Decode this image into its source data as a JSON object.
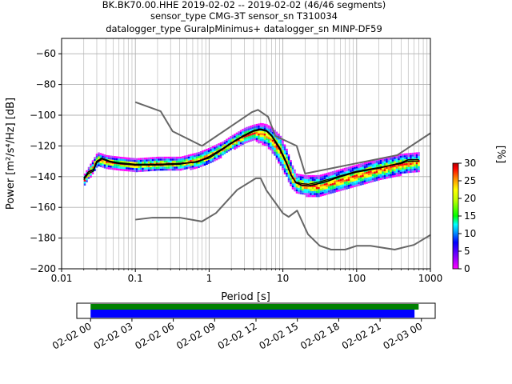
{
  "chart_data": {
    "type": "heatmap",
    "title_lines": [
      "BK.BK70.00.HHE   2019-02-02 -- 2019-02-02  (46/46 segments)",
      "sensor_type CMG-3T sensor_sn T310034",
      "datalogger_type GuralpMinimus+ datalogger_sn MINP-DF59"
    ],
    "xlabel": "Period [s]",
    "ylabel": "Power [m²/s⁴/Hz] [dB]",
    "xscale": "log",
    "xlim": [
      0.01,
      1000
    ],
    "ylim": [
      -200,
      -50
    ],
    "xticks": [
      {
        "value": 0.01,
        "label": "0.01"
      },
      {
        "value": 0.1,
        "label": "0.1"
      },
      {
        "value": 1,
        "label": "1"
      },
      {
        "value": 10,
        "label": "10"
      },
      {
        "value": 100,
        "label": "100"
      },
      {
        "value": 1000,
        "label": "1000"
      }
    ],
    "yticks": [
      {
        "value": -60,
        "label": "−60"
      },
      {
        "value": -80,
        "label": "−80"
      },
      {
        "value": -100,
        "label": "−100"
      },
      {
        "value": -120,
        "label": "−120"
      },
      {
        "value": -140,
        "label": "−140"
      },
      {
        "value": -160,
        "label": "−160"
      },
      {
        "value": -180,
        "label": "−180"
      },
      {
        "value": -200,
        "label": "−200"
      }
    ],
    "grid": true,
    "colorbar": {
      "label": "[%]",
      "range": [
        0,
        30
      ],
      "ticks": [
        "0",
        "5",
        "10",
        "15",
        "20",
        "25",
        "30"
      ]
    },
    "new_high_noise_model": [
      [
        0.1,
        -91.5
      ],
      [
        0.22,
        -97.4
      ],
      [
        0.32,
        -110.5
      ],
      [
        0.8,
        -120
      ],
      [
        3.8,
        -98
      ],
      [
        4.6,
        -96.5
      ],
      [
        6.3,
        -101
      ],
      [
        7.9,
        -113.5
      ],
      [
        15.4,
        -120
      ],
      [
        20,
        -138
      ],
      [
        354.8,
        -126
      ],
      [
        10000,
        -80
      ]
    ],
    "new_low_noise_model": [
      [
        0.1,
        -168
      ],
      [
        0.17,
        -166.7
      ],
      [
        0.4,
        -166.7
      ],
      [
        0.8,
        -169.2
      ],
      [
        1.24,
        -163.7
      ],
      [
        2.4,
        -148.6
      ],
      [
        4.3,
        -141.1
      ],
      [
        5,
        -141.1
      ],
      [
        6,
        -149
      ],
      [
        10,
        -163.8
      ],
      [
        12,
        -166.2
      ],
      [
        15.6,
        -162.1
      ],
      [
        21.9,
        -177.5
      ],
      [
        31.6,
        -185
      ],
      [
        45,
        -187.5
      ],
      [
        70,
        -187.5
      ],
      [
        101,
        -185
      ],
      [
        154,
        -185
      ],
      [
        328,
        -187.5
      ],
      [
        600,
        -184.4
      ],
      [
        1000,
        -178
      ]
    ],
    "mode_line": [
      [
        0.02,
        -141
      ],
      [
        0.023,
        -137
      ],
      [
        0.027,
        -135.5
      ],
      [
        0.03,
        -130
      ],
      [
        0.035,
        -128
      ],
      [
        0.045,
        -130
      ],
      [
        0.06,
        -131
      ],
      [
        0.1,
        -132
      ],
      [
        0.2,
        -132
      ],
      [
        0.4,
        -131.5
      ],
      [
        0.7,
        -130.5
      ],
      [
        1,
        -127
      ],
      [
        1.5,
        -122
      ],
      [
        2,
        -118
      ],
      [
        3,
        -113
      ],
      [
        4,
        -110
      ],
      [
        5,
        -109
      ],
      [
        6,
        -110
      ],
      [
        7,
        -113
      ],
      [
        9,
        -121
      ],
      [
        11,
        -130
      ],
      [
        13,
        -139
      ],
      [
        15,
        -144
      ],
      [
        18,
        -145.5
      ],
      [
        22,
        -146
      ],
      [
        28,
        -145
      ],
      [
        40,
        -143
      ],
      [
        60,
        -140
      ],
      [
        100,
        -137
      ],
      [
        200,
        -134.5
      ],
      [
        400,
        -131
      ],
      [
        500,
        -129
      ],
      [
        700,
        -129
      ]
    ],
    "mean_line": [
      [
        0.02,
        -142
      ],
      [
        0.023,
        -138
      ],
      [
        0.027,
        -136.5
      ],
      [
        0.03,
        -131
      ],
      [
        0.035,
        -128.5
      ],
      [
        0.045,
        -130.5
      ],
      [
        0.06,
        -131.5
      ],
      [
        0.1,
        -132.5
      ],
      [
        0.2,
        -132.5
      ],
      [
        0.4,
        -132
      ],
      [
        0.7,
        -130
      ],
      [
        1,
        -128
      ],
      [
        1.5,
        -122.5
      ],
      [
        2,
        -118.5
      ],
      [
        3,
        -113.5
      ],
      [
        4,
        -110.5
      ],
      [
        5,
        -109.5
      ],
      [
        6,
        -110.5
      ],
      [
        7,
        -113.5
      ],
      [
        9,
        -122
      ],
      [
        11,
        -131
      ],
      [
        13,
        -139.5
      ],
      [
        15,
        -143.5
      ],
      [
        18,
        -144.5
      ],
      [
        22,
        -145
      ],
      [
        28,
        -144
      ],
      [
        40,
        -142
      ],
      [
        60,
        -139.5
      ],
      [
        100,
        -136.5
      ],
      [
        200,
        -134
      ],
      [
        400,
        -131.5
      ],
      [
        500,
        -130
      ],
      [
        700,
        -130
      ]
    ],
    "density_band": [
      [
        0.02,
        -145,
        -138
      ],
      [
        0.03,
        -133,
        -124
      ],
      [
        0.04,
        -134,
        -126
      ],
      [
        0.06,
        -135,
        -127
      ],
      [
        0.1,
        -136,
        -128
      ],
      [
        0.2,
        -136,
        -127
      ],
      [
        0.4,
        -135,
        -127
      ],
      [
        0.7,
        -134,
        -124
      ],
      [
        1,
        -131,
        -121
      ],
      [
        1.5,
        -126,
        -117
      ],
      [
        2,
        -122,
        -113
      ],
      [
        3,
        -118,
        -108
      ],
      [
        4,
        -116,
        -106
      ],
      [
        5,
        -118,
        -105
      ],
      [
        6,
        -120,
        -106
      ],
      [
        7,
        -124,
        -108
      ],
      [
        9,
        -132,
        -113
      ],
      [
        11,
        -140,
        -122
      ],
      [
        13,
        -147,
        -132
      ],
      [
        15,
        -150,
        -138
      ],
      [
        20,
        -152,
        -139
      ],
      [
        30,
        -153,
        -139
      ],
      [
        50,
        -150,
        -136
      ],
      [
        100,
        -146,
        -132
      ],
      [
        200,
        -142,
        -128
      ],
      [
        400,
        -138,
        -125
      ],
      [
        700,
        -136,
        -124
      ]
    ]
  },
  "timeline": {
    "tick_labels": [
      "02-02 00",
      "02-02 03",
      "02-02 06",
      "02-02 09",
      "02-02 12",
      "02-02 15",
      "02-02 18",
      "02-02 21",
      "02-03 00"
    ],
    "data_bar": {
      "start_hour": 0,
      "end_hour": 23.8,
      "color": "#008000"
    },
    "used_bar": {
      "start_hour": 0,
      "end_hour": 23.5,
      "color": "#0000ff"
    },
    "range_hours": [
      -1,
      25
    ]
  }
}
